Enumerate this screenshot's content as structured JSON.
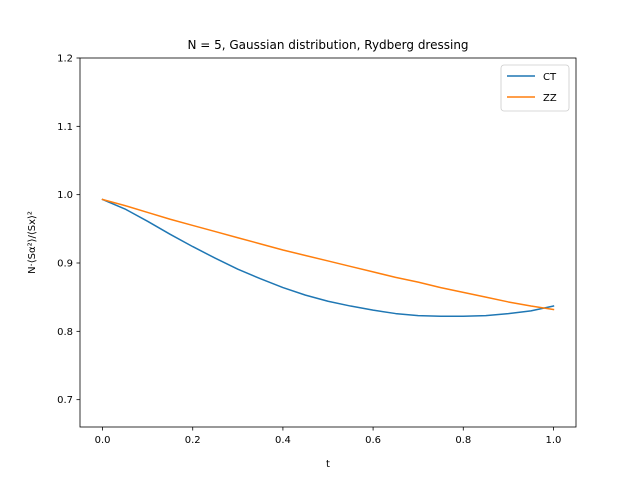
{
  "chart_data": {
    "type": "line",
    "title": "N = 5, Gaussian distribution, Rydberg dressing",
    "xlabel": "t",
    "ylabel": "N·⟨Sα²⟩/⟨Sx⟩²",
    "xlim": [
      -0.05,
      1.05
    ],
    "ylim": [
      0.66,
      1.2
    ],
    "x_ticks": [
      0.0,
      0.2,
      0.4,
      0.6,
      0.8,
      1.0
    ],
    "x_tick_labels": [
      "0.0",
      "0.2",
      "0.4",
      "0.6",
      "0.8",
      "1.0"
    ],
    "y_ticks": [
      0.7,
      0.8,
      0.9,
      1.0,
      1.1,
      1.2
    ],
    "y_tick_labels": [
      "0.7",
      "0.8",
      "0.9",
      "1.0",
      "1.1",
      "1.2"
    ],
    "grid": false,
    "legend_position": "top-right",
    "x": [
      0.0,
      0.05,
      0.1,
      0.15,
      0.2,
      0.25,
      0.3,
      0.35,
      0.4,
      0.45,
      0.5,
      0.55,
      0.6,
      0.65,
      0.7,
      0.75,
      0.8,
      0.85,
      0.9,
      0.95,
      1.0
    ],
    "series": [
      {
        "name": "CT",
        "color": "#1f77b4",
        "values": [
          0.993,
          0.979,
          0.961,
          0.942,
          0.924,
          0.907,
          0.891,
          0.877,
          0.864,
          0.853,
          0.844,
          0.837,
          0.831,
          0.826,
          0.823,
          0.822,
          0.822,
          0.823,
          0.826,
          0.83,
          0.837
        ]
      },
      {
        "name": "ZZ",
        "color": "#ff7f0e",
        "values": [
          0.993,
          0.984,
          0.974,
          0.964,
          0.955,
          0.946,
          0.937,
          0.928,
          0.919,
          0.911,
          0.903,
          0.895,
          0.887,
          0.879,
          0.872,
          0.864,
          0.857,
          0.85,
          0.843,
          0.837,
          0.832
        ]
      }
    ]
  }
}
